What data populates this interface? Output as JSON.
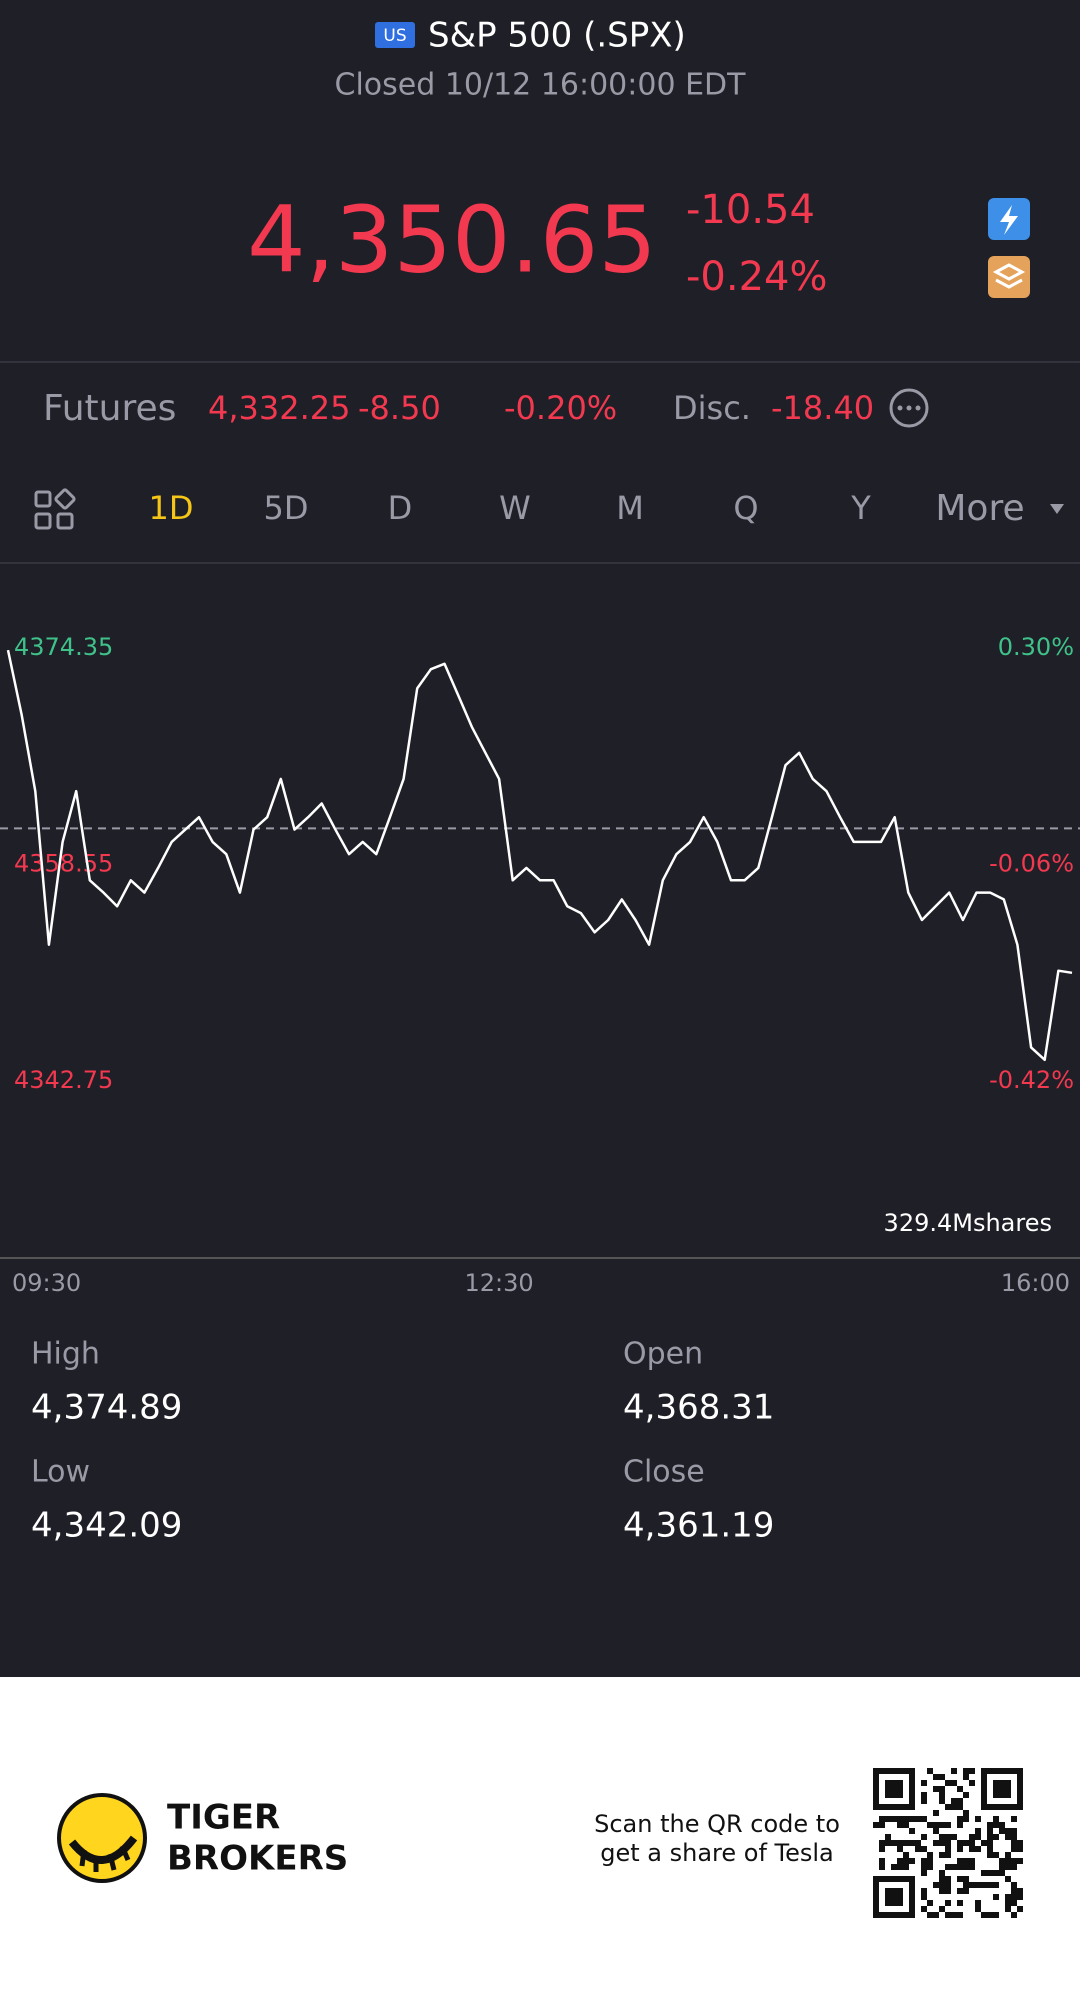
{
  "header": {
    "badge": "US",
    "symbol": "S&P 500 (.SPX)",
    "status": "Closed 10/12 16:00:00 EDT"
  },
  "quote": {
    "price": "4,350.65",
    "change": "-10.54",
    "change_pct": "-0.24%"
  },
  "futures": {
    "label": "Futures",
    "price": "4,332.25",
    "change": "-8.50",
    "change_pct": "-0.20%",
    "disc_label": "Disc.",
    "disc": "-18.40"
  },
  "tabs": [
    "1D",
    "5D",
    "D",
    "W",
    "M",
    "Q",
    "Y",
    "More"
  ],
  "chart_data": {
    "type": "line",
    "color": "#ffffff",
    "x": [
      "09:30",
      "09:35",
      "09:40",
      "09:45",
      "09:50",
      "09:55",
      "10:00",
      "10:05",
      "10:10",
      "10:15",
      "10:20",
      "10:25",
      "10:30",
      "10:35",
      "10:40",
      "10:45",
      "10:50",
      "10:55",
      "11:00",
      "11:05",
      "11:10",
      "11:15",
      "11:20",
      "11:25",
      "11:30",
      "11:35",
      "11:40",
      "11:45",
      "11:50",
      "11:55",
      "12:00",
      "12:05",
      "12:10",
      "12:15",
      "12:20",
      "12:25",
      "12:30",
      "12:35",
      "12:40",
      "12:45",
      "12:50",
      "12:55",
      "13:00",
      "13:05",
      "13:10",
      "13:15",
      "13:20",
      "13:25",
      "13:30",
      "13:35",
      "13:40",
      "13:45",
      "13:50",
      "13:55",
      "14:00",
      "14:05",
      "14:10",
      "14:15",
      "14:20",
      "14:25",
      "14:30",
      "14:35",
      "14:40",
      "14:45",
      "14:50",
      "14:55",
      "15:00",
      "15:05",
      "15:10",
      "15:15",
      "15:20",
      "15:25",
      "15:30",
      "15:35",
      "15:40",
      "15:45",
      "15:50",
      "15:55",
      "16:00"
    ],
    "values": [
      4374.2,
      4369.5,
      4363.9,
      4352.7,
      4360.2,
      4363.9,
      4357.4,
      4356.5,
      4355.5,
      4357.4,
      4356.5,
      4358.3,
      4360.2,
      4361.1,
      4362.0,
      4360.2,
      4359.3,
      4356.5,
      4361.1,
      4362.0,
      4364.8,
      4361.1,
      4362.0,
      4363.0,
      4361.1,
      4359.3,
      4360.2,
      4359.3,
      4362.0,
      4364.8,
      4371.4,
      4372.8,
      4373.2,
      4370.9,
      4368.6,
      4366.7,
      4364.8,
      4357.4,
      4358.3,
      4357.4,
      4357.4,
      4355.5,
      4355.0,
      4353.6,
      4354.5,
      4356.0,
      4354.5,
      4352.7,
      4357.4,
      4359.3,
      4360.2,
      4362.0,
      4360.2,
      4357.4,
      4357.4,
      4358.3,
      4362.0,
      4365.8,
      4366.7,
      4364.8,
      4363.9,
      4362.0,
      4360.2,
      4360.2,
      4360.2,
      4362.0,
      4356.5,
      4354.5,
      4355.5,
      4356.5,
      4354.5,
      4356.5,
      4356.5,
      4356.0,
      4352.7,
      4345.2,
      4344.3,
      4350.8,
      4350.65
    ],
    "ylim": [
      4342.75,
      4374.35
    ],
    "yticks": [
      4374.35,
      4358.55,
      4342.75
    ],
    "y2lim": [
      -0.42,
      0.3
    ],
    "y2ticks": [
      {
        "value": 0.3,
        "label": "0.30%"
      },
      {
        "value": -0.06,
        "label": "-0.06%"
      },
      {
        "value": -0.42,
        "label": "-0.42%"
      }
    ],
    "reference_line": 4361.19,
    "volume_label": "329.4Mshares",
    "xtick_indices": [
      0,
      36,
      78
    ]
  },
  "stats": [
    [
      {
        "label": "High",
        "value": "4,374.89"
      },
      {
        "label": "Open",
        "value": "4,368.31"
      }
    ],
    [
      {
        "label": "Low",
        "value": "4,342.09"
      },
      {
        "label": "Close",
        "value": "4,361.19"
      }
    ]
  ],
  "footer": {
    "brand": [
      "TIGER",
      "BROKERS"
    ],
    "scan": [
      "Scan the QR code to",
      "get a share of Tesla"
    ]
  }
}
